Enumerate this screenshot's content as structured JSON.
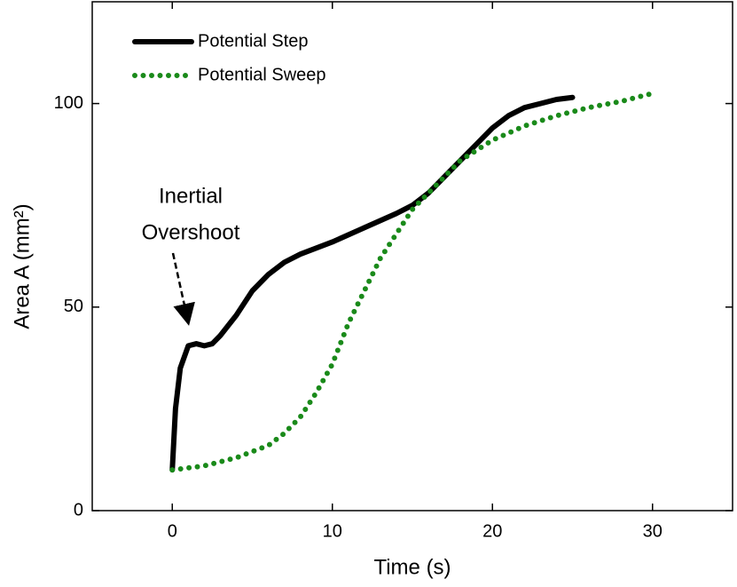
{
  "chart_data": {
    "type": "line",
    "xlabel": "Time (s)",
    "ylabel": "Area A (mm²)",
    "xlim": [
      -5,
      35
    ],
    "xticks": [
      0,
      10,
      20,
      30
    ],
    "ylim": [
      0,
      125
    ],
    "yticks": [
      0,
      50,
      100
    ],
    "legend": "upper left",
    "annotation": [
      "Inertial",
      "Overshoot"
    ],
    "series": [
      {
        "name": "Potential Step",
        "color": "#000000",
        "style": "solid",
        "x": [
          0,
          0.2,
          0.5,
          1,
          1.5,
          2,
          2.5,
          3,
          4,
          5,
          6,
          7,
          8,
          9,
          10,
          12,
          14,
          15,
          16,
          17,
          18,
          19,
          20,
          21,
          22,
          23,
          24,
          25
        ],
        "values": [
          10,
          25,
          35,
          40.5,
          41,
          40.5,
          41,
          43,
          48,
          54,
          58,
          61,
          63,
          64.5,
          66,
          69.5,
          73,
          75,
          78,
          82,
          86,
          90,
          94,
          97,
          99,
          100,
          101,
          101.5
        ]
      },
      {
        "name": "Potential Sweep",
        "color": "#1a8a1a",
        "style": "dotted",
        "x": [
          0,
          2,
          4,
          6,
          7,
          8,
          9,
          10,
          11,
          12,
          13,
          14,
          15,
          16,
          17,
          18,
          20,
          22,
          24,
          26,
          28,
          30
        ],
        "values": [
          10,
          11,
          13,
          16,
          19,
          23,
          29,
          36,
          46,
          54,
          62,
          68,
          74,
          78,
          82,
          86,
          91,
          94.5,
          97,
          99,
          100.5,
          102.5
        ]
      }
    ]
  }
}
